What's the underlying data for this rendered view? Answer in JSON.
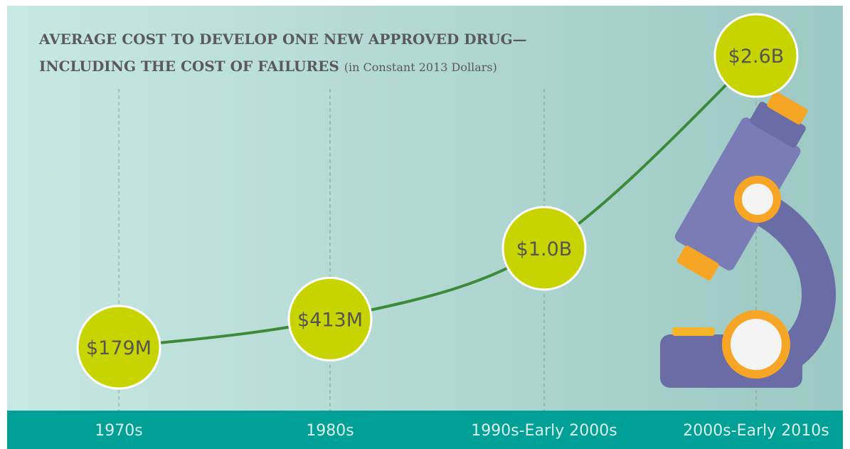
{
  "chart_data": {
    "type": "line",
    "title": "AVERAGE COST TO DEVELOP ONE NEW APPROVED DRUG—",
    "title_line_2": "INCLUDING THE COST OF FAILURES",
    "subtitle": "(in Constant 2013 Dollars)",
    "categories": [
      "1970s",
      "1980s",
      "1990s-Early 2000s",
      "2000s-Early 2010s"
    ],
    "values": [
      179,
      413,
      1000,
      2600
    ],
    "value_labels": [
      "$179M",
      "$413M",
      "$1.0B",
      "$2.6B"
    ],
    "color": "#3d8a3a",
    "marker_color": "#c8d400"
  }
}
